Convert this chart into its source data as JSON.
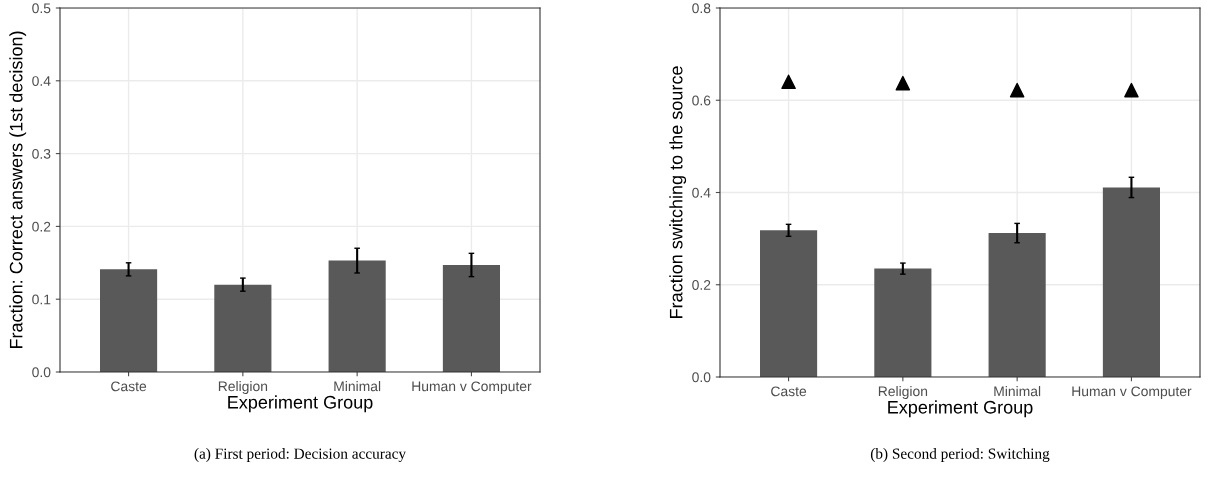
{
  "chart_data": [
    {
      "type": "bar",
      "xlabel": "Experiment Group",
      "ylabel": "Fraction: Correct answers (1st decision)",
      "categories": [
        "Caste",
        "Religion",
        "Minimal",
        "Human v Computer"
      ],
      "series": [
        {
          "color": "#595959",
          "values": [
            0.141,
            0.12,
            0.153,
            0.147
          ],
          "errors": [
            0.009,
            0.009,
            0.017,
            0.016
          ]
        }
      ],
      "ylim": [
        0,
        0.5
      ],
      "yticks": [
        {
          "value": 0,
          "label": "0.0"
        },
        0.1,
        0.2,
        0.3,
        0.4,
        0.5
      ],
      "grid": true,
      "legend": false,
      "annotations": [
        "(a) First period: Decision accuracy"
      ]
    },
    {
      "type": "bar",
      "xlabel": "Experiment Group",
      "ylabel": "Fraction switching to the source",
      "categories": [
        "Caste",
        "Religion",
        "Minimal",
        "Human v Computer"
      ],
      "series": [
        {
          "color": "#595959",
          "values": [
            0.318,
            0.235,
            0.312,
            0.411
          ],
          "errors": [
            0.013,
            0.012,
            0.021,
            0.022
          ]
        },
        {
          "type": "scatter",
          "color": "#000000",
          "marker": "triangle",
          "values": [
            0.64,
            0.637,
            0.622,
            0.622
          ]
        }
      ],
      "ylim": [
        0,
        0.8
      ],
      "yticks": [
        {
          "value": 0,
          "label": "0.0"
        },
        0.2,
        0.4,
        0.6,
        0.8
      ],
      "grid": true,
      "legend": false,
      "annotations": [
        "(b) Second period: Switching"
      ]
    }
  ]
}
